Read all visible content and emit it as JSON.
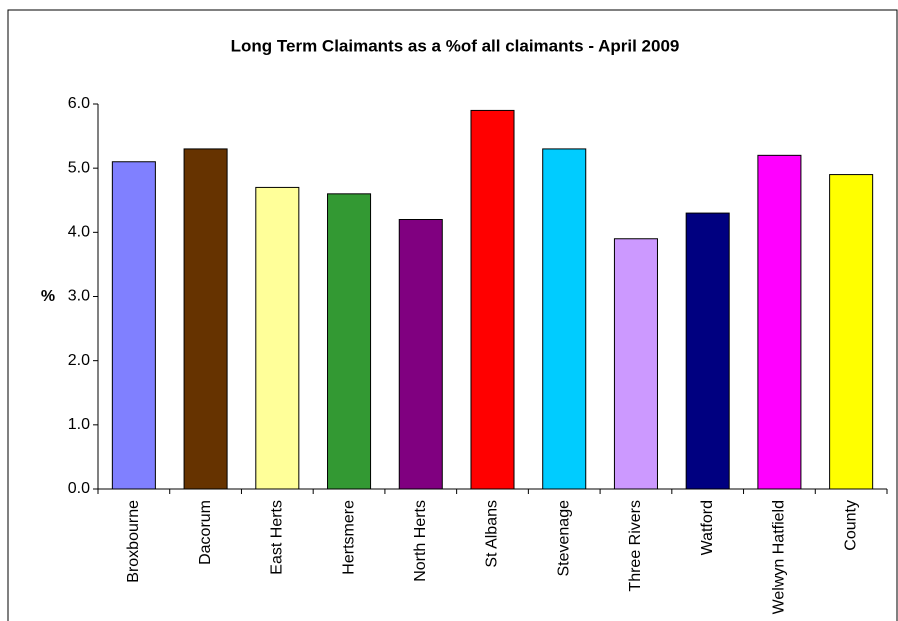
{
  "chart_data": {
    "type": "bar",
    "title": "Long Term Claimants as a %of all claimants - April 2009",
    "y_label": "%",
    "categories": [
      "Broxbourne",
      "Dacorum",
      "East Herts",
      "Hertsmere",
      "North Herts",
      "St Albans",
      "Stevenage",
      "Three Rivers",
      "Watford",
      "Welwyn Hatfield",
      "County"
    ],
    "values": [
      5.1,
      5.3,
      4.7,
      4.6,
      4.2,
      5.9,
      5.3,
      3.9,
      4.3,
      5.2,
      4.9
    ],
    "colors": [
      "#8080ff",
      "#663300",
      "#ffff99",
      "#339933",
      "#800080",
      "#ff0000",
      "#00ccff",
      "#cc99ff",
      "#000080",
      "#ff00ff",
      "#ffff00"
    ],
    "ylim": [
      0,
      6
    ],
    "yticks": [
      {
        "value": 0,
        "label": "0.0"
      },
      {
        "value": 1,
        "label": "1.0"
      },
      {
        "value": 2,
        "label": "2.0"
      },
      {
        "value": 3,
        "label": "3.0"
      },
      {
        "value": 4,
        "label": "4.0"
      },
      {
        "value": 5,
        "label": "5.0"
      },
      {
        "value": 6,
        "label": "6.0"
      }
    ],
    "grid": false
  }
}
